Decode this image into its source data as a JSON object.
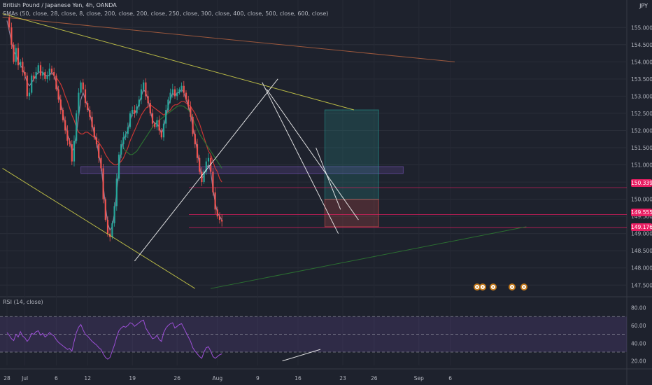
{
  "header": {
    "title": "British Pound / Japanese Yen, 4h, OANDA",
    "indicator": "SMAs (50, close, 28, close, 8, close, 200, close, 200, close, 250, close, 300, close, 400, close, 500, close, 600, close)",
    "currency": "JPY",
    "rsi_label": "RSI (14, close)"
  },
  "price_tags": [
    {
      "label": "150.339",
      "value": 150.339,
      "color": "#e91e63"
    },
    {
      "label": "149.555",
      "value": 149.555,
      "color": "#e91e63"
    },
    {
      "label": "149.176",
      "value": 149.176,
      "color": "#e91e63"
    }
  ],
  "chart_data": [
    {
      "type": "candlestick",
      "title": "British Pound / Japanese Yen, 4h, OANDA",
      "ylabel": "",
      "ylim": [
        147.2,
        155.8
      ],
      "y_ticks": [
        "147.500",
        "148.000",
        "148.500",
        "149.000",
        "149.500",
        "150.000",
        "150.500",
        "151.000",
        "151.500",
        "152.000",
        "152.500",
        "153.000",
        "153.500",
        "154.000",
        "154.500",
        "155.000"
      ],
      "x_ticks": [
        {
          "label": "28",
          "x": 0
        },
        {
          "label": "Jul",
          "x": 8
        },
        {
          "label": "6",
          "x": 22
        },
        {
          "label": "12",
          "x": 36
        },
        {
          "label": "19",
          "x": 56
        },
        {
          "label": "26",
          "x": 76
        },
        {
          "label": "Aug",
          "x": 94
        },
        {
          "label": "9",
          "x": 112
        },
        {
          "label": "16",
          "x": 130
        },
        {
          "label": "23",
          "x": 150
        },
        {
          "label": "26",
          "x": 164
        },
        {
          "label": "Sep",
          "x": 184
        },
        {
          "label": "6",
          "x": 198
        }
      ],
      "close": [
        155.3,
        155.0,
        154.5,
        154.0,
        154.4,
        153.9,
        154.0,
        153.7,
        153.6,
        153.0,
        153.1,
        153.6,
        153.5,
        153.7,
        153.9,
        153.6,
        153.7,
        153.5,
        153.6,
        153.8,
        153.7,
        153.6,
        153.2,
        152.9,
        152.6,
        152.3,
        152.0,
        151.7,
        151.6,
        151.1,
        151.7,
        152.5,
        153.1,
        153.4,
        153.2,
        152.8,
        152.6,
        152.4,
        152.1,
        151.8,
        151.6,
        151.2,
        150.9,
        150.0,
        149.4,
        149.0,
        148.9,
        149.3,
        149.8,
        150.6,
        151.3,
        151.6,
        151.8,
        151.9,
        152.1,
        152.5,
        152.6,
        152.5,
        152.7,
        152.9,
        153.2,
        153.4,
        153.0,
        152.8,
        152.5,
        152.2,
        152.1,
        152.3,
        152.0,
        151.8,
        152.2,
        152.6,
        152.9,
        153.1,
        153.2,
        153.0,
        153.1,
        153.2,
        153.3,
        153.1,
        152.9,
        152.7,
        152.4,
        151.9,
        151.6,
        151.2,
        150.8,
        150.5,
        150.8,
        151.1,
        151.2,
        150.8,
        150.2,
        149.7,
        149.5,
        149.4,
        149.35
      ],
      "series": [
        {
          "name": "",
          "color": "#e53935",
          "values": [
            null,
            null,
            null,
            null,
            null,
            null,
            null,
            null,
            null,
            null,
            null,
            null,
            null,
            null,
            null,
            null,
            null,
            null,
            null,
            null,
            null,
            null,
            153.55,
            153.45,
            153.35,
            153.2,
            153.0,
            152.85,
            152.65,
            152.45,
            152.3,
            152.1,
            151.95,
            151.9,
            151.9,
            151.95,
            151.95,
            151.9,
            151.85,
            151.8,
            151.7,
            151.65,
            151.55,
            151.45,
            151.3,
            151.2,
            151.1,
            151.05,
            151.0,
            151.0,
            151.05,
            151.1,
            151.2,
            151.35,
            151.5,
            151.7,
            151.85,
            152.0,
            152.15,
            152.3,
            152.45,
            152.55,
            152.65,
            152.7,
            152.75,
            152.7,
            152.65,
            152.6,
            152.55,
            152.5,
            152.45,
            152.5,
            152.55,
            152.6,
            152.7,
            152.75,
            152.75,
            152.8,
            152.85,
            152.85,
            152.8,
            152.75,
            152.7,
            152.6,
            152.5,
            152.35,
            152.2,
            152.0,
            151.8,
            151.6,
            151.4,
            151.3,
            151.1,
            150.9,
            150.8,
            150.6,
            150.5
          ]
        },
        {
          "name": "",
          "color": "#2e7d32",
          "values": [
            null,
            null,
            null,
            null,
            null,
            null,
            null,
            null,
            null,
            null,
            null,
            null,
            null,
            null,
            null,
            null,
            null,
            null,
            null,
            null,
            null,
            null,
            null,
            null,
            null,
            null,
            null,
            null,
            null,
            null,
            null,
            null,
            null,
            null,
            null,
            null,
            null,
            null,
            null,
            null,
            null,
            null,
            null,
            null,
            null,
            null,
            null,
            null,
            null,
            null,
            null,
            null,
            151.5,
            151.4,
            151.35,
            151.3,
            151.3,
            151.35,
            151.4,
            151.5,
            151.6,
            151.7,
            151.8,
            151.9,
            152.0,
            152.1,
            152.2,
            152.25,
            152.3,
            152.35,
            152.4,
            152.45,
            152.5,
            152.55,
            152.6,
            152.65,
            152.7,
            152.72,
            152.72,
            152.7,
            152.65,
            152.6,
            152.5,
            152.35,
            152.2,
            152.05,
            151.9,
            151.8,
            151.7,
            151.6,
            151.5,
            151.4,
            151.3,
            151.2,
            151.1,
            151.0,
            150.9
          ]
        },
        {
          "name": "",
          "color": "#9e8fb0",
          "values": [
            155.2,
            154.9,
            154.6,
            154.3,
            154.2,
            154.0,
            153.9,
            153.8,
            153.6,
            153.4,
            153.3,
            153.4,
            153.5,
            153.6,
            153.7,
            153.7,
            153.7,
            153.6,
            153.6,
            153.6,
            153.7,
            153.6,
            153.4,
            153.1,
            152.8,
            152.5,
            152.2,
            151.9,
            151.7,
            151.4,
            151.5,
            151.9,
            152.4,
            152.9,
            153.1,
            152.9,
            152.7,
            152.5,
            152.2,
            151.9,
            151.7,
            151.3,
            151.0,
            150.4,
            149.8,
            149.3,
            149.1,
            149.2,
            149.6,
            150.2,
            150.9,
            151.4,
            151.7,
            151.9,
            152.0,
            152.3,
            152.5,
            152.5,
            152.6,
            152.8,
            153.0,
            153.2,
            153.1,
            152.9,
            152.6,
            152.3,
            152.2,
            152.2,
            152.1,
            151.9,
            152.1,
            152.4,
            152.7,
            152.9,
            153.1,
            153.0,
            153.1,
            153.1,
            153.2,
            153.1,
            152.9,
            152.7,
            152.5,
            152.1,
            151.8,
            151.4,
            151.0,
            150.6,
            150.7,
            150.9,
            151.0,
            150.8,
            150.3,
            149.9,
            149.6,
            149.5,
            149.4
          ]
        }
      ],
      "horizontal_levels": [
        150.339,
        149.555,
        149.176
      ],
      "trendlines": [
        {
          "from": [
            -2,
            155.3
          ],
          "to": [
            200,
            154.0
          ],
          "color": "#b06040"
        },
        {
          "from": [
            -2,
            155.4
          ],
          "to": [
            155,
            152.6
          ],
          "color": "#d4d44a"
        },
        {
          "from": [
            -2,
            150.9
          ],
          "to": [
            84,
            147.4
          ],
          "color": "#d4d44a"
        },
        {
          "from": [
            91,
            147.4
          ],
          "to": [
            232,
            149.2
          ],
          "color": "#2e7d32"
        },
        {
          "from": [
            57,
            148.2
          ],
          "to": [
            121,
            153.5
          ],
          "color": "#ffffff"
        },
        {
          "from": [
            114,
            153.4
          ],
          "to": [
            148,
            149.0
          ],
          "color": "#ffffff"
        },
        {
          "from": [
            116,
            153.2
          ],
          "to": [
            157,
            149.4
          ],
          "color": "#ffffff"
        },
        {
          "from": [
            138,
            151.5
          ],
          "to": [
            149,
            149.7
          ],
          "color": "#ffffff"
        }
      ],
      "zones": [
        {
          "x0": 33,
          "x1": 177,
          "y0": 150.75,
          "y1": 150.95,
          "color": "#7e57c2"
        },
        {
          "x0": 142,
          "x1": 166,
          "y0": 150.0,
          "y1": 152.6,
          "color": "#26a69a"
        },
        {
          "x0": 142,
          "x1": 166,
          "y0": 149.2,
          "y1": 150.0,
          "color": "#ef5350"
        }
      ]
    },
    {
      "type": "line",
      "title": "RSI (14, close)",
      "ylim": [
        15,
        82
      ],
      "y_ticks": [
        "20.00",
        "40.00",
        "60.00",
        "80.00"
      ],
      "bands": [
        70,
        50,
        30
      ],
      "series": [
        {
          "name": "",
          "color": "#9c4fd6",
          "values": [
            52,
            49,
            45,
            43,
            50,
            47,
            53,
            48,
            46,
            42,
            45,
            51,
            50,
            53,
            54,
            49,
            51,
            47,
            49,
            52,
            50,
            48,
            44,
            41,
            39,
            37,
            35,
            33,
            34,
            31,
            42,
            52,
            58,
            61,
            55,
            50,
            48,
            45,
            42,
            40,
            38,
            35,
            33,
            28,
            24,
            22,
            24,
            31,
            38,
            47,
            54,
            57,
            59,
            58,
            60,
            63,
            62,
            59,
            61,
            63,
            65,
            66,
            57,
            53,
            49,
            45,
            46,
            49,
            44,
            42,
            52,
            57,
            60,
            62,
            63,
            57,
            59,
            61,
            62,
            57,
            52,
            47,
            42,
            35,
            31,
            28,
            25,
            23,
            30,
            35,
            36,
            31,
            25,
            23,
            25,
            27,
            28
          ]
        }
      ],
      "trendlines": [
        {
          "from": [
            123,
            20
          ],
          "to": [
            140,
            33
          ],
          "color": "#ffffff"
        }
      ]
    }
  ]
}
